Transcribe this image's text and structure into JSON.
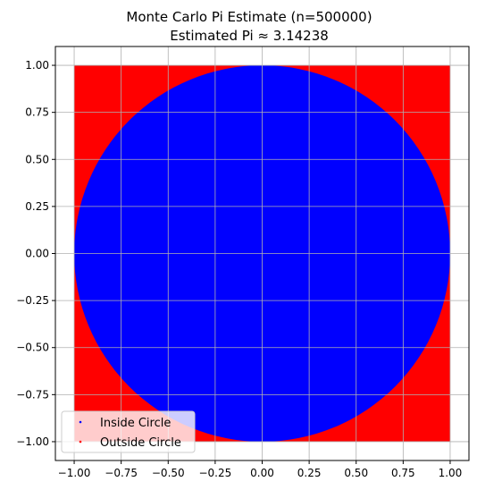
{
  "chart_data": {
    "type": "scatter",
    "title": "Monte Carlo Pi Estimate (n=500000)",
    "subtitle": "Estimated Pi ≈ 3.14238",
    "xlabel": "",
    "ylabel": "",
    "xlim": [
      -1.1,
      1.1
    ],
    "ylim": [
      -1.1,
      1.1
    ],
    "xticks": [
      -1.0,
      -0.75,
      -0.5,
      -0.25,
      0.0,
      0.25,
      0.5,
      0.75,
      1.0
    ],
    "yticks": [
      -1.0,
      -0.75,
      -0.5,
      -0.25,
      0.0,
      0.25,
      0.5,
      0.75,
      1.0
    ],
    "xtick_labels": [
      "−1.00",
      "−0.75",
      "−0.50",
      "−0.25",
      "0.00",
      "0.25",
      "0.50",
      "0.75",
      "1.00"
    ],
    "ytick_labels": [
      "−1.00",
      "−0.75",
      "−0.50",
      "−0.25",
      "0.00",
      "0.25",
      "0.50",
      "0.75",
      "1.00"
    ],
    "grid": true,
    "legend_position": "lower-left",
    "n_points": 500000,
    "estimate": 3.14238,
    "sample_region": {
      "x": [
        -1.0,
        1.0
      ],
      "y": [
        -1.0,
        1.0
      ]
    },
    "series": [
      {
        "name": "Inside Circle",
        "color": "#0000ff",
        "region": "x^2 + y^2 <= 1"
      },
      {
        "name": "Outside Circle",
        "color": "#ff0000",
        "region": "x^2 + y^2 > 1"
      }
    ]
  }
}
